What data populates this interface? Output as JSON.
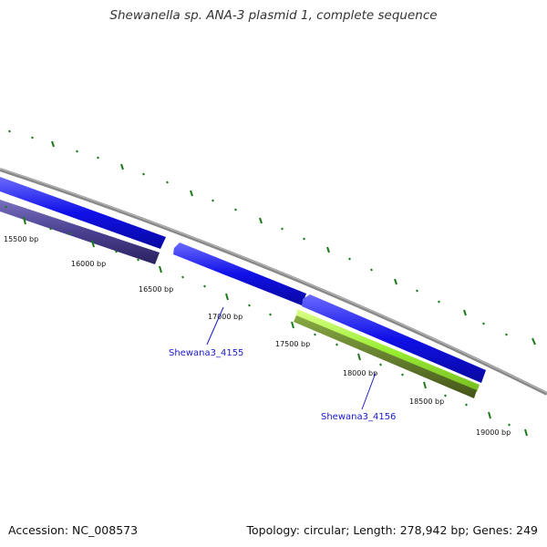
{
  "title": "Shewanella sp. ANA-3 plasmid 1, complete sequence",
  "accession": "Accession: NC_008573",
  "summary": "Topology: circular; Length: 278,942 bp; Genes: 249",
  "colors": {
    "backbone": "#888888",
    "forward_gene": "#1010e8",
    "reverse_gene": "#4a4090",
    "highlight_gene": "#99ee33",
    "highlight_gene_dark": "#557722",
    "ticks": "#1a7a1a",
    "gene_label": "#1a1acc"
  },
  "ticks": [
    "15500 bp",
    "16000 bp",
    "16500 bp",
    "17000 bp",
    "17500 bp",
    "18000 bp",
    "18500 bp",
    "19000 bp"
  ],
  "gene_labels": [
    "Shewana3_4155",
    "Shewana3_4156"
  ]
}
